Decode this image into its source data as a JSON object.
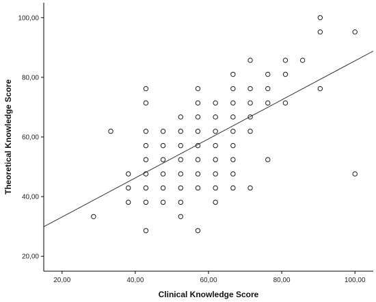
{
  "chart_data": {
    "type": "scatter",
    "title": "",
    "xlabel": "Clinical Knowledge Score",
    "ylabel": "Theoretical Knowledge Score",
    "xlim": [
      15,
      105
    ],
    "ylim": [
      15,
      105
    ],
    "x_ticks": [
      20,
      40,
      60,
      80,
      100
    ],
    "y_ticks": [
      20,
      40,
      60,
      80,
      100
    ],
    "x_tick_labels": [
      "20,00",
      "40,00",
      "60,00",
      "80,00",
      "100,00"
    ],
    "y_tick_labels": [
      "20,00",
      "40,00",
      "60,00",
      "80,00",
      "100,00"
    ],
    "grid": false,
    "legend": "none",
    "marker": "open-circle",
    "series": [
      {
        "points": [
          [
            28.6,
            33.3
          ],
          [
            33.3,
            61.9
          ],
          [
            38.1,
            47.6
          ],
          [
            38.1,
            42.9
          ],
          [
            38.1,
            38.1
          ],
          [
            42.9,
            76.2
          ],
          [
            42.9,
            71.4
          ],
          [
            42.9,
            61.9
          ],
          [
            42.9,
            57.1
          ],
          [
            42.9,
            52.4
          ],
          [
            42.9,
            47.6
          ],
          [
            42.9,
            42.9
          ],
          [
            42.9,
            38.1
          ],
          [
            42.9,
            28.6
          ],
          [
            47.6,
            61.9
          ],
          [
            47.6,
            57.1
          ],
          [
            47.6,
            52.4
          ],
          [
            47.6,
            47.6
          ],
          [
            47.6,
            42.9
          ],
          [
            47.6,
            38.1
          ],
          [
            52.4,
            66.7
          ],
          [
            52.4,
            61.9
          ],
          [
            52.4,
            57.1
          ],
          [
            52.4,
            52.4
          ],
          [
            52.4,
            47.6
          ],
          [
            52.4,
            42.9
          ],
          [
            52.4,
            38.1
          ],
          [
            52.4,
            33.3
          ],
          [
            57.1,
            76.2
          ],
          [
            57.1,
            71.4
          ],
          [
            57.1,
            66.7
          ],
          [
            57.1,
            61.9
          ],
          [
            57.1,
            57.1
          ],
          [
            57.1,
            52.4
          ],
          [
            57.1,
            47.6
          ],
          [
            57.1,
            42.9
          ],
          [
            57.1,
            28.6
          ],
          [
            61.9,
            71.4
          ],
          [
            61.9,
            66.7
          ],
          [
            61.9,
            61.9
          ],
          [
            61.9,
            57.1
          ],
          [
            61.9,
            52.4
          ],
          [
            61.9,
            47.6
          ],
          [
            61.9,
            42.9
          ],
          [
            61.9,
            38.1
          ],
          [
            66.7,
            81.0
          ],
          [
            66.7,
            76.2
          ],
          [
            66.7,
            71.4
          ],
          [
            66.7,
            66.7
          ],
          [
            66.7,
            61.9
          ],
          [
            66.7,
            57.1
          ],
          [
            66.7,
            52.4
          ],
          [
            66.7,
            47.6
          ],
          [
            66.7,
            42.9
          ],
          [
            71.4,
            85.7
          ],
          [
            71.4,
            76.2
          ],
          [
            71.4,
            71.4
          ],
          [
            71.4,
            66.7
          ],
          [
            71.4,
            61.9
          ],
          [
            71.4,
            42.9
          ],
          [
            76.2,
            81.0
          ],
          [
            76.2,
            76.2
          ],
          [
            76.2,
            71.4
          ],
          [
            76.2,
            52.4
          ],
          [
            81.0,
            85.7
          ],
          [
            81.0,
            81.0
          ],
          [
            81.0,
            71.4
          ],
          [
            85.7,
            85.7
          ],
          [
            90.5,
            100.0
          ],
          [
            90.5,
            95.2
          ],
          [
            90.5,
            76.2
          ],
          [
            100.0,
            95.2
          ],
          [
            100.0,
            47.6
          ]
        ]
      }
    ],
    "fit_line": {
      "type": "linear",
      "x_start": 15,
      "y_start": 29.9,
      "x_end": 105,
      "y_end": 88.8
    },
    "colors": {
      "axis": "#000000",
      "marker_stroke": "#1a1a1a",
      "fit_line": "#333333",
      "background": "#ffffff"
    }
  }
}
